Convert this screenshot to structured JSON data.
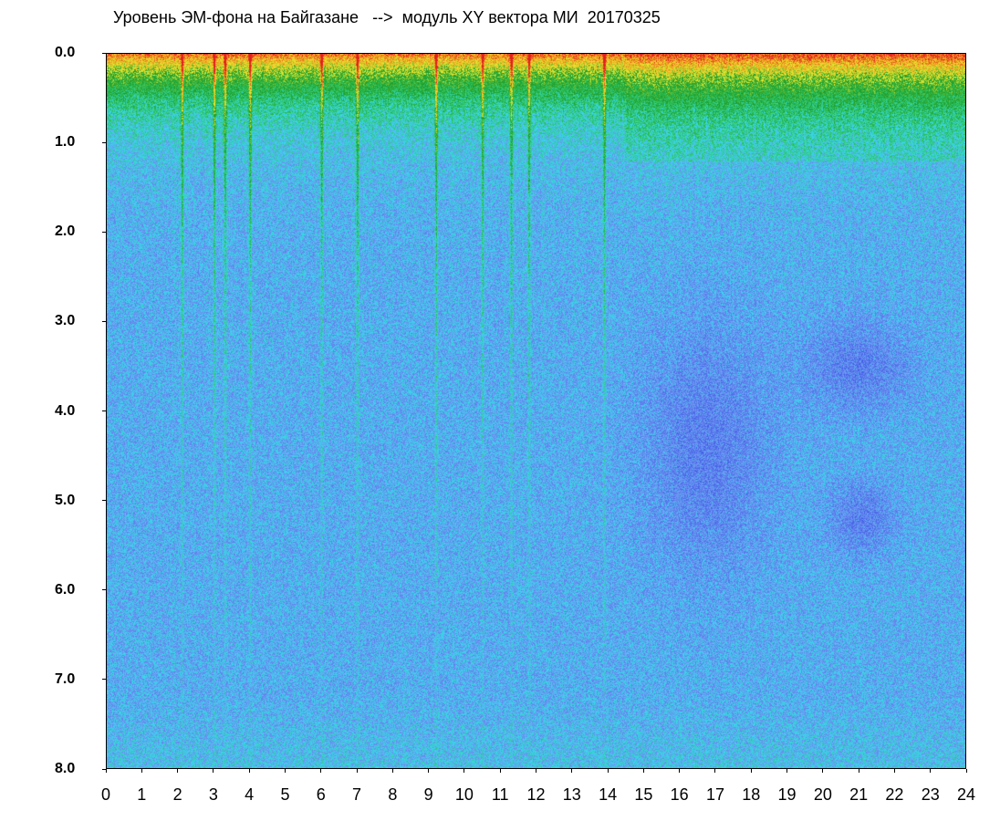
{
  "title": "Уровень ЭМ-фона на Байгазане   -->  модуль XY вектора МИ  20170325",
  "chart_data": {
    "type": "heatmap",
    "title": "Уровень ЭМ-фона на Байгазане   -->  модуль XY вектора МИ  20170325",
    "xlabel": "",
    "ylabel": "",
    "x_ticks": [
      "0",
      "1",
      "2",
      "3",
      "4",
      "5",
      "6",
      "7",
      "8",
      "9",
      "10",
      "11",
      "12",
      "13",
      "14",
      "15",
      "16",
      "17",
      "18",
      "19",
      "20",
      "21",
      "22",
      "23",
      "24"
    ],
    "y_ticks": [
      "0.0",
      "1.0",
      "2.0",
      "3.0",
      "4.0",
      "5.0",
      "6.0",
      "7.0",
      "8.0"
    ],
    "xlim": [
      0,
      24
    ],
    "ylim": [
      0,
      8
    ],
    "y_inverted": true,
    "colorscale": [
      "#1c2de8",
      "#4a66e8",
      "#6f8ff0",
      "#38d8f0",
      "#2ec45a",
      "#1a9a2a",
      "#e8ec30",
      "#f0a020",
      "#e02020"
    ],
    "features": {
      "high_intensity_band_y": [
        0,
        0.8
      ],
      "saturated_top_y": [
        0,
        0.3
      ],
      "vertical_streaks_x": [
        2.1,
        3.0,
        3.3,
        4.0,
        6.0,
        7.0,
        9.2,
        10.5,
        11.3,
        11.8,
        13.9
      ],
      "low_intensity_regions": [
        {
          "x": [
            15,
            18.5
          ],
          "y": [
            3.0,
            5.8
          ]
        },
        {
          "x": [
            19.5,
            22.5
          ],
          "y": [
            3.0,
            4.0
          ]
        },
        {
          "x": [
            20.2,
            22
          ],
          "y": [
            4.8,
            5.6
          ]
        }
      ]
    },
    "grid": false,
    "legend": "none"
  }
}
